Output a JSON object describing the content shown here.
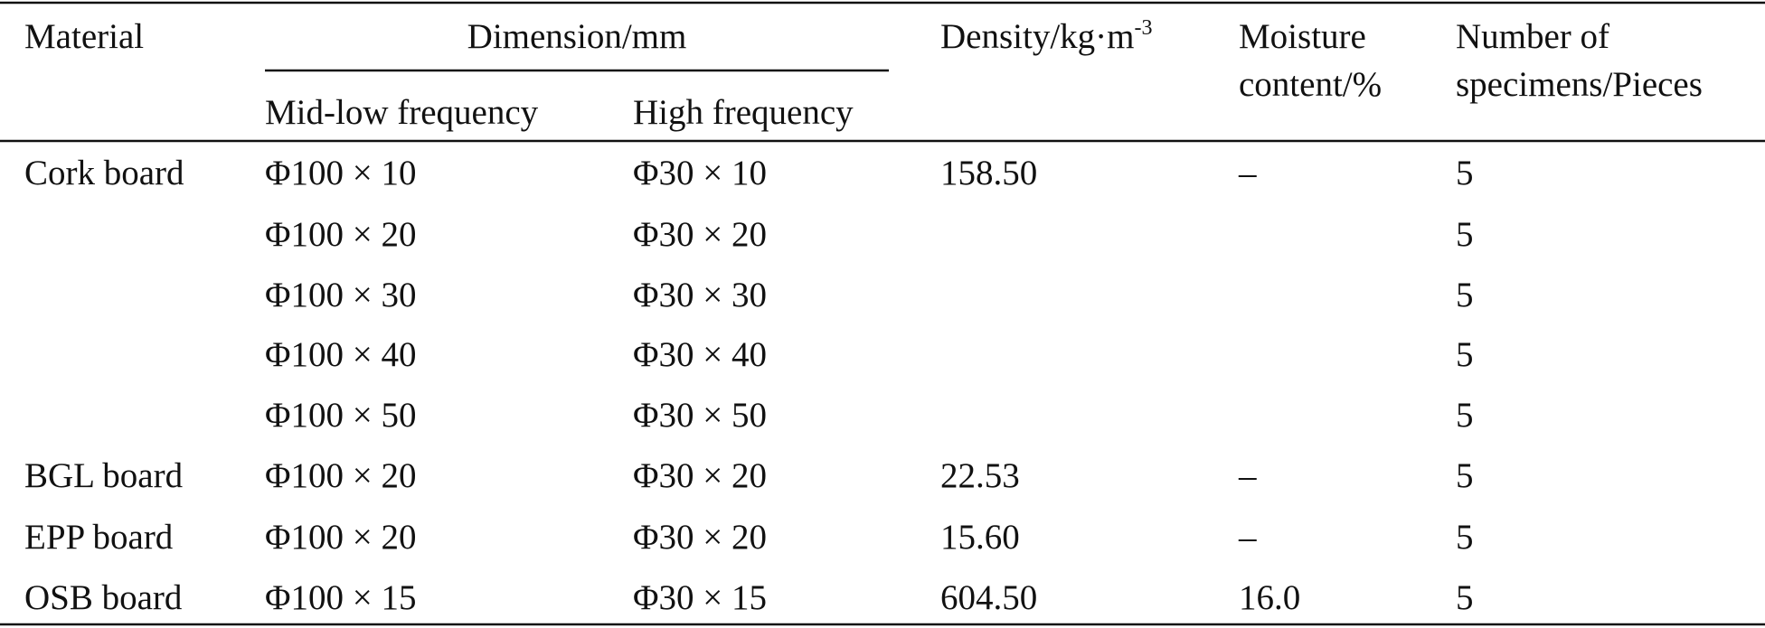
{
  "table": {
    "header": {
      "material": "Material",
      "dimension": "Dimension/mm",
      "mid_low": "Mid-low frequency",
      "high": "High frequency",
      "density": {
        "text": "Density/kg·m",
        "sup": "-3"
      },
      "moisture": [
        "Moisture",
        "content/%"
      ],
      "number": [
        "Number of",
        "specimens/Pieces"
      ]
    },
    "rows": [
      [
        "Cork board",
        "Φ100 × 10",
        "Φ30 × 10",
        "158.50",
        "–",
        "5"
      ],
      [
        null,
        "Φ100 × 20",
        "Φ30 × 20",
        null,
        null,
        "5"
      ],
      [
        null,
        "Φ100 × 30",
        "Φ30 × 30",
        null,
        null,
        "5"
      ],
      [
        null,
        "Φ100 × 40",
        "Φ30 × 40",
        null,
        null,
        "5"
      ],
      [
        null,
        "Φ100 × 50",
        "Φ30 × 50",
        null,
        null,
        "5"
      ],
      [
        "BGL board",
        "Φ100 × 20",
        "Φ30 × 20",
        "22.53",
        "–",
        "5"
      ],
      [
        "EPP board",
        "Φ100 × 20",
        "Φ30 × 20",
        "15.60",
        "–",
        "5"
      ],
      [
        "OSB board",
        "Φ100 × 15",
        "Φ30 × 15",
        "604.50",
        "16.0",
        "5"
      ]
    ]
  }
}
